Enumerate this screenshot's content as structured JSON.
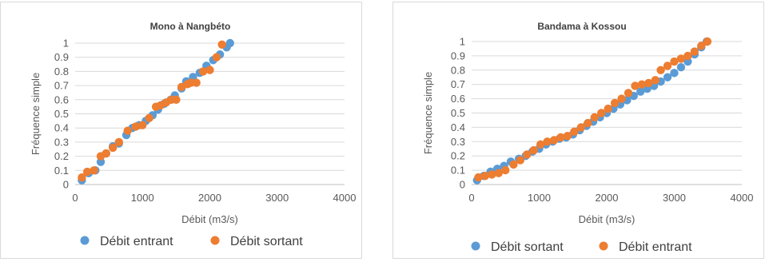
{
  "colors": {
    "blue": "#5b9bd5",
    "orange": "#ed7d31",
    "grid": "#d9d9d9",
    "axis": "#bfbfbf"
  },
  "chart_data": [
    {
      "type": "scatter",
      "title": "Mono à Nangbéto",
      "xlabel": "Débit (m3/s)",
      "ylabel": "Fréquence simple",
      "xlim": [
        0,
        4000
      ],
      "ylim": [
        0,
        1
      ],
      "x_ticks": [
        "0",
        "1000",
        "2000",
        "3000",
        "4000"
      ],
      "y_ticks": [
        "0",
        "0.1",
        "0.2",
        "0.3",
        "0.4",
        "0.5",
        "0.6",
        "0.7",
        "0.8",
        "0.9",
        "1"
      ],
      "grid": "horizontal",
      "legend": "bottom",
      "series": [
        {
          "name": "Débit entrant",
          "color": "#5b9bd5",
          "points": [
            [
              100,
              0.03
            ],
            [
              200,
              0.08
            ],
            [
              300,
              0.1
            ],
            [
              380,
              0.16
            ],
            [
              460,
              0.22
            ],
            [
              560,
              0.27
            ],
            [
              650,
              0.29
            ],
            [
              760,
              0.35
            ],
            [
              850,
              0.4
            ],
            [
              950,
              0.42
            ],
            [
              1050,
              0.45
            ],
            [
              1150,
              0.49
            ],
            [
              1230,
              0.53
            ],
            [
              1320,
              0.57
            ],
            [
              1420,
              0.6
            ],
            [
              1480,
              0.63
            ],
            [
              1580,
              0.68
            ],
            [
              1650,
              0.73
            ],
            [
              1750,
              0.76
            ],
            [
              1850,
              0.79
            ],
            [
              1950,
              0.84
            ],
            [
              2050,
              0.88
            ],
            [
              2150,
              0.92
            ],
            [
              2250,
              0.97
            ],
            [
              2300,
              1.0
            ]
          ]
        },
        {
          "name": "Débit sortant",
          "color": "#ed7d31",
          "points": [
            [
              100,
              0.05
            ],
            [
              180,
              0.09
            ],
            [
              280,
              0.1
            ],
            [
              380,
              0.2
            ],
            [
              460,
              0.22
            ],
            [
              560,
              0.26
            ],
            [
              650,
              0.3
            ],
            [
              780,
              0.38
            ],
            [
              900,
              0.41
            ],
            [
              1000,
              0.42
            ],
            [
              1100,
              0.47
            ],
            [
              1200,
              0.55
            ],
            [
              1270,
              0.56
            ],
            [
              1350,
              0.58
            ],
            [
              1430,
              0.6
            ],
            [
              1500,
              0.6
            ],
            [
              1580,
              0.69
            ],
            [
              1670,
              0.71
            ],
            [
              1720,
              0.72
            ],
            [
              1800,
              0.72
            ],
            [
              1900,
              0.8
            ],
            [
              2000,
              0.81
            ],
            [
              2100,
              0.9
            ],
            [
              2180,
              0.99
            ]
          ]
        }
      ]
    },
    {
      "type": "scatter",
      "title": "Bandama à Kossou",
      "xlabel": "Débit (m3/s)",
      "ylabel": "Fréquence simple",
      "xlim": [
        0,
        4000
      ],
      "ylim": [
        0,
        1
      ],
      "x_ticks": [
        "0",
        "1000",
        "2000",
        "3000",
        "4000"
      ],
      "y_ticks": [
        "0",
        "0.1",
        "0.2",
        "0.3",
        "0.4",
        "0.5",
        "0.6",
        "0.7",
        "0.8",
        "0.9",
        "1"
      ],
      "grid": "horizontal",
      "legend": "bottom",
      "series": [
        {
          "name": "Débit sortant",
          "color": "#5b9bd5",
          "points": [
            [
              80,
              0.03
            ],
            [
              180,
              0.06
            ],
            [
              280,
              0.09
            ],
            [
              380,
              0.11
            ],
            [
              480,
              0.13
            ],
            [
              580,
              0.16
            ],
            [
              700,
              0.18
            ],
            [
              800,
              0.2
            ],
            [
              900,
              0.23
            ],
            [
              1000,
              0.25
            ],
            [
              1100,
              0.28
            ],
            [
              1200,
              0.3
            ],
            [
              1300,
              0.32
            ],
            [
              1400,
              0.33
            ],
            [
              1500,
              0.35
            ],
            [
              1600,
              0.38
            ],
            [
              1700,
              0.41
            ],
            [
              1800,
              0.44
            ],
            [
              1900,
              0.47
            ],
            [
              2000,
              0.5
            ],
            [
              2100,
              0.53
            ],
            [
              2200,
              0.56
            ],
            [
              2300,
              0.59
            ],
            [
              2400,
              0.62
            ],
            [
              2500,
              0.65
            ],
            [
              2600,
              0.67
            ],
            [
              2700,
              0.69
            ],
            [
              2800,
              0.72
            ],
            [
              2900,
              0.75
            ],
            [
              3000,
              0.78
            ],
            [
              3100,
              0.82
            ],
            [
              3200,
              0.86
            ],
            [
              3300,
              0.91
            ],
            [
              3400,
              0.96
            ],
            [
              3480,
              1.0
            ]
          ]
        },
        {
          "name": "Débit entrant",
          "color": "#ed7d31",
          "points": [
            [
              100,
              0.05
            ],
            [
              200,
              0.06
            ],
            [
              300,
              0.07
            ],
            [
              400,
              0.08
            ],
            [
              500,
              0.1
            ],
            [
              620,
              0.14
            ],
            [
              720,
              0.17
            ],
            [
              820,
              0.21
            ],
            [
              920,
              0.24
            ],
            [
              1020,
              0.28
            ],
            [
              1120,
              0.3
            ],
            [
              1220,
              0.31
            ],
            [
              1320,
              0.33
            ],
            [
              1420,
              0.34
            ],
            [
              1520,
              0.37
            ],
            [
              1620,
              0.4
            ],
            [
              1720,
              0.43
            ],
            [
              1820,
              0.47
            ],
            [
              1920,
              0.5
            ],
            [
              2020,
              0.53
            ],
            [
              2120,
              0.57
            ],
            [
              2220,
              0.6
            ],
            [
              2320,
              0.64
            ],
            [
              2420,
              0.69
            ],
            [
              2520,
              0.7
            ],
            [
              2620,
              0.71
            ],
            [
              2720,
              0.73
            ],
            [
              2800,
              0.8
            ],
            [
              2900,
              0.83
            ],
            [
              3000,
              0.86
            ],
            [
              3100,
              0.88
            ],
            [
              3200,
              0.9
            ],
            [
              3300,
              0.93
            ],
            [
              3400,
              0.97
            ],
            [
              3490,
              1.0
            ]
          ]
        }
      ]
    }
  ]
}
